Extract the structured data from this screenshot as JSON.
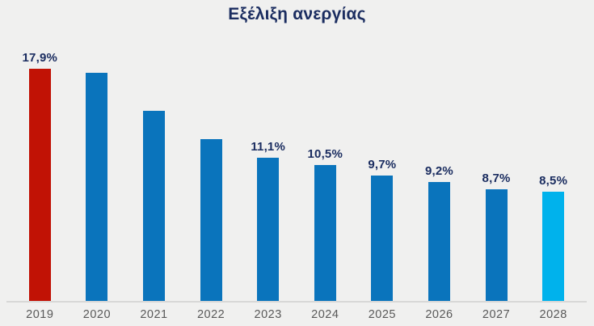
{
  "colors": {
    "background": "#f0f0ef",
    "title_text": "#1b2d60",
    "value_label_text": "#1b2d60",
    "year_label_text": "#595959",
    "axis_line": "#d8d8d7",
    "bar_default_blue": "#0a74bc",
    "bar_highlight_red": "#c11205",
    "bar_highlight_cyan": "#00b2ec"
  },
  "chart_data": {
    "type": "bar",
    "title": "Εξέλιξη ανεργίας",
    "categories": [
      "2019",
      "2020",
      "2021",
      "2022",
      "2023",
      "2024",
      "2025",
      "2026",
      "2027",
      "2028"
    ],
    "values": [
      17.9,
      17.6,
      14.7,
      12.5,
      11.1,
      10.5,
      9.7,
      9.2,
      8.7,
      8.5
    ],
    "value_labels": [
      "17,9%",
      "",
      "",
      "",
      "11,1%",
      "10,5%",
      "9,7%",
      "9,2%",
      "8,7%",
      "8,5%"
    ],
    "bar_colors": [
      "#c11205",
      "#0a74bc",
      "#0a74bc",
      "#0a74bc",
      "#0a74bc",
      "#0a74bc",
      "#0a74bc",
      "#0a74bc",
      "#0a74bc",
      "#00b2ec"
    ],
    "xlabel": "",
    "ylabel": "",
    "ylim": [
      0,
      20
    ],
    "grid": false,
    "legend": false,
    "note": "bars for 2020-2022 carry no data labels; their values are estimated from bar heights"
  }
}
